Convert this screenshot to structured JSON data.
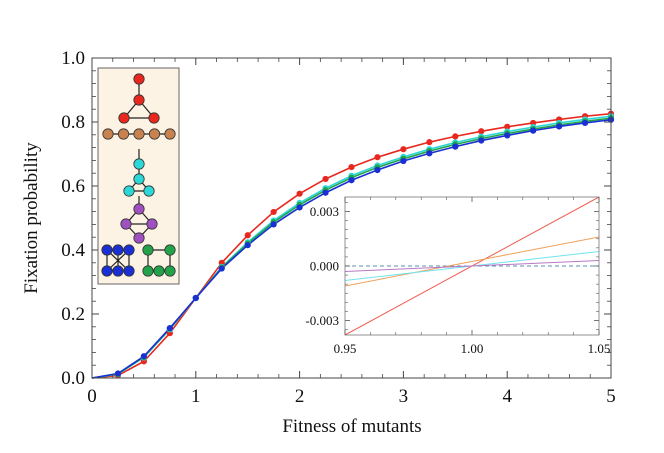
{
  "chart_data": {
    "type": "line",
    "title": "",
    "xlabel": "Fitness of mutants",
    "ylabel": "Fixation probability",
    "xlim": [
      0,
      5
    ],
    "ylim": [
      0,
      1.0
    ],
    "x_ticks": [
      0,
      1,
      2,
      3,
      4,
      5
    ],
    "x_tick_labels": [
      "0",
      "1",
      "2",
      "3",
      "4",
      "5"
    ],
    "y_ticks": [
      0,
      0.2,
      0.4,
      0.6,
      0.8,
      1.0
    ],
    "y_tick_labels": [
      "0.0",
      "0.2",
      "0.4",
      "0.6",
      "0.8",
      "1.0"
    ],
    "x": [
      0.25,
      0.5,
      0.75,
      1.0,
      1.25,
      1.5,
      1.75,
      2.0,
      2.25,
      2.5,
      2.75,
      3.0,
      3.25,
      3.5,
      3.75,
      4.0,
      4.25,
      4.5,
      4.75,
      5.0
    ],
    "series": [
      {
        "name": "red",
        "color": "#e8281e",
        "values": [
          0.008,
          0.052,
          0.14,
          0.25,
          0.36,
          0.446,
          0.519,
          0.576,
          0.622,
          0.659,
          0.69,
          0.715,
          0.737,
          0.755,
          0.771,
          0.785,
          0.797,
          0.808,
          0.818,
          0.826
        ]
      },
      {
        "name": "cyan",
        "color": "#2cd7d7",
        "values": [
          0.012,
          0.064,
          0.152,
          0.25,
          0.347,
          0.424,
          0.492,
          0.547,
          0.593,
          0.632,
          0.664,
          0.691,
          0.715,
          0.736,
          0.754,
          0.77,
          0.784,
          0.797,
          0.808,
          0.818
        ]
      },
      {
        "name": "green",
        "color": "#22a34a",
        "values": [
          0.013,
          0.066,
          0.154,
          0.25,
          0.345,
          0.42,
          0.487,
          0.541,
          0.587,
          0.626,
          0.658,
          0.685,
          0.709,
          0.73,
          0.748,
          0.764,
          0.778,
          0.791,
          0.802,
          0.812
        ]
      },
      {
        "name": "blue",
        "color": "#1a2fd4",
        "values": [
          0.014,
          0.068,
          0.156,
          0.25,
          0.342,
          0.415,
          0.48,
          0.533,
          0.579,
          0.618,
          0.65,
          0.678,
          0.702,
          0.723,
          0.742,
          0.758,
          0.773,
          0.786,
          0.797,
          0.807
        ]
      }
    ],
    "inset": {
      "xlim": [
        0.95,
        1.05
      ],
      "ylim": [
        -0.0038,
        0.0038
      ],
      "x_ticks": [
        0.95,
        1.0,
        1.05
      ],
      "x_tick_labels": [
        "0.95",
        "1.00",
        "1.05"
      ],
      "y_ticks": [
        -0.003,
        0.0,
        0.003
      ],
      "y_tick_labels": [
        "-0.003",
        "0.000",
        "0.003"
      ],
      "reference_line": {
        "y": 0.0,
        "style": "dashed",
        "color": "#5b8fb0"
      },
      "lines": [
        {
          "name": "red",
          "color": "#f05a4e",
          "x": [
            0.95,
            1.05
          ],
          "y": [
            -0.0038,
            0.0038
          ]
        },
        {
          "name": "orange",
          "color": "#f0a05a",
          "x": [
            0.95,
            1.05
          ],
          "y": [
            -0.0011,
            0.0016
          ]
        },
        {
          "name": "cyan",
          "color": "#6fe3ef",
          "x": [
            0.95,
            1.05
          ],
          "y": [
            -0.0008,
            0.0008
          ]
        },
        {
          "name": "purple",
          "color": "#b878c4",
          "x": [
            0.95,
            1.05
          ],
          "y": [
            -0.0003,
            0.0003
          ]
        }
      ]
    },
    "legend": {
      "placement": "top-left",
      "entries": [
        {
          "name": "triangle-with-tail graph",
          "color": "#e8281e"
        },
        {
          "name": "path graph",
          "color": "#c88250"
        },
        {
          "name": "tail-triangle graph",
          "color": "#2cd7d7"
        },
        {
          "name": "diamond graph",
          "color": "#a050c0"
        },
        {
          "name": "complete-with-cross graph",
          "color": "#1a2fd4"
        },
        {
          "name": "grid graph",
          "color": "#22a34a"
        }
      ]
    }
  }
}
